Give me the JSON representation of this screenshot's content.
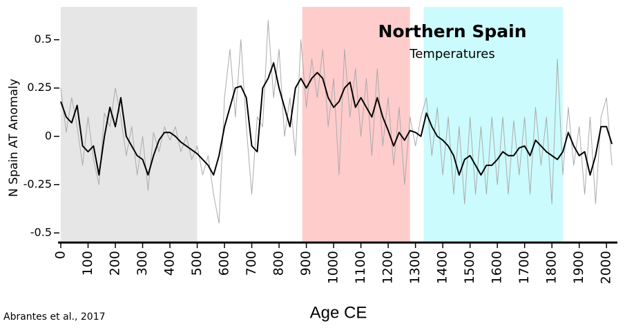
{
  "chart_data": {
    "type": "line",
    "title": "Northern Spain",
    "subtitle": "Temperatures",
    "y_label": "N Spain AT Anomaly",
    "x_label": "Age CE",
    "source": "Abrantes et al., 2017",
    "xlim": [
      0,
      2040
    ],
    "ylim": [
      -0.55,
      0.67
    ],
    "xticks": [
      0,
      100,
      200,
      300,
      400,
      500,
      600,
      700,
      800,
      900,
      1000,
      1100,
      1200,
      1300,
      1400,
      1500,
      1600,
      1700,
      1800,
      1900,
      2000
    ],
    "yticks": [
      -0.5,
      -0.25,
      0,
      0.25,
      0.5
    ],
    "shaded_periods": [
      {
        "start": 0,
        "end": 500,
        "color": "#e6e6e6"
      },
      {
        "start": 885,
        "end": 1280,
        "color": "#ffcccc"
      },
      {
        "start": 1330,
        "end": 1840,
        "color": "#ccfbfd"
      }
    ],
    "x": [
      0,
      20,
      40,
      60,
      80,
      100,
      120,
      140,
      160,
      180,
      200,
      220,
      240,
      260,
      280,
      300,
      320,
      340,
      360,
      380,
      400,
      420,
      440,
      460,
      480,
      500,
      520,
      540,
      560,
      580,
      600,
      620,
      640,
      660,
      680,
      700,
      720,
      740,
      760,
      780,
      800,
      820,
      840,
      860,
      880,
      900,
      920,
      940,
      960,
      980,
      1000,
      1020,
      1040,
      1060,
      1080,
      1100,
      1120,
      1140,
      1160,
      1180,
      1200,
      1220,
      1240,
      1260,
      1280,
      1300,
      1320,
      1340,
      1360,
      1380,
      1400,
      1420,
      1440,
      1460,
      1480,
      1500,
      1520,
      1540,
      1560,
      1580,
      1600,
      1620,
      1640,
      1660,
      1680,
      1700,
      1720,
      1740,
      1760,
      1780,
      1800,
      1820,
      1840,
      1860,
      1880,
      1900,
      1920,
      1940,
      1960,
      1980,
      2000,
      2020
    ],
    "series": [
      {
        "color": "#aaaaaa",
        "width": 1,
        "values": [
          0.25,
          0.02,
          0.2,
          0.05,
          -0.15,
          0.1,
          -0.12,
          -0.25,
          0.12,
          0.05,
          0.25,
          0.1,
          -0.1,
          0.05,
          -0.2,
          0.0,
          -0.28,
          0.02,
          -0.08,
          0.05,
          -0.02,
          0.05,
          -0.08,
          0.0,
          -0.12,
          -0.05,
          -0.2,
          -0.1,
          -0.3,
          -0.45,
          0.2,
          0.45,
          0.1,
          0.5,
          0.05,
          -0.3,
          0.1,
          0.05,
          0.6,
          0.2,
          0.45,
          0.0,
          0.2,
          -0.1,
          0.5,
          0.15,
          0.4,
          0.2,
          0.45,
          0.05,
          0.3,
          -0.2,
          0.45,
          0.1,
          0.35,
          0.0,
          0.3,
          -0.1,
          0.35,
          -0.05,
          0.2,
          -0.15,
          0.15,
          -0.25,
          0.1,
          -0.05,
          0.1,
          0.2,
          -0.1,
          0.15,
          -0.2,
          0.1,
          -0.3,
          0.05,
          -0.35,
          0.1,
          -0.3,
          0.05,
          -0.3,
          0.1,
          -0.25,
          0.1,
          -0.3,
          0.08,
          -0.2,
          0.1,
          -0.3,
          0.15,
          -0.15,
          0.1,
          -0.35,
          0.4,
          -0.2,
          0.15,
          -0.15,
          0.05,
          -0.3,
          0.1,
          -0.35,
          0.1,
          0.2,
          -0.15
        ]
      },
      {
        "color": "#000000",
        "width": 2,
        "values": [
          0.18,
          0.1,
          0.07,
          0.16,
          -0.05,
          -0.08,
          -0.05,
          -0.2,
          0.0,
          0.15,
          0.05,
          0.2,
          0.0,
          -0.05,
          -0.1,
          -0.12,
          -0.2,
          -0.1,
          -0.02,
          0.02,
          0.02,
          0.0,
          -0.03,
          -0.05,
          -0.07,
          -0.09,
          -0.12,
          -0.15,
          -0.2,
          -0.1,
          0.05,
          0.15,
          0.25,
          0.26,
          0.2,
          -0.05,
          -0.08,
          0.25,
          0.3,
          0.38,
          0.25,
          0.15,
          0.05,
          0.25,
          0.3,
          0.25,
          0.3,
          0.33,
          0.3,
          0.2,
          0.15,
          0.18,
          0.25,
          0.28,
          0.15,
          0.2,
          0.15,
          0.1,
          0.2,
          0.1,
          0.03,
          -0.05,
          0.02,
          -0.02,
          0.03,
          0.02,
          0.0,
          0.12,
          0.05,
          0.0,
          -0.02,
          -0.05,
          -0.1,
          -0.2,
          -0.12,
          -0.1,
          -0.15,
          -0.2,
          -0.15,
          -0.15,
          -0.12,
          -0.08,
          -0.1,
          -0.1,
          -0.06,
          -0.05,
          -0.1,
          -0.02,
          -0.05,
          -0.08,
          -0.1,
          -0.12,
          -0.08,
          0.02,
          -0.05,
          -0.1,
          -0.08,
          -0.2,
          -0.1,
          0.05,
          0.05,
          -0.04
        ]
      }
    ]
  }
}
